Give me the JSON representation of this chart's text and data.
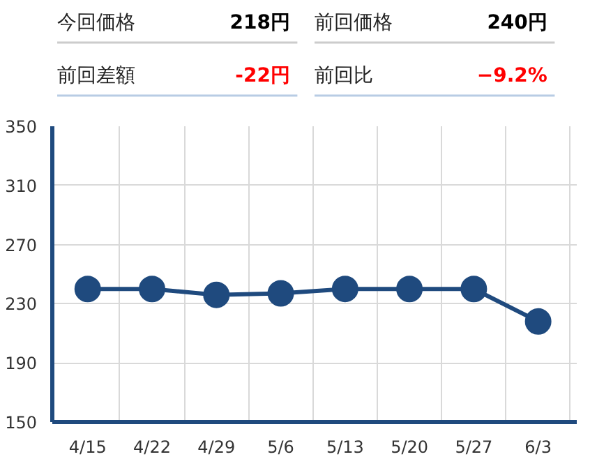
{
  "chart_data": [
    {
      "type": "other",
      "annotations": [
        "今回価格",
        "218円",
        "前回価格",
        "240円",
        "前回差額",
        "-22円",
        "前回比",
        "−9.2%"
      ]
    },
    {
      "type": "line",
      "categories": [
        "4/15",
        "4/22",
        "4/29",
        "5/6",
        "5/13",
        "5/20",
        "5/27",
        "6/3"
      ],
      "series": [
        {
          "color": "#1f4a7e",
          "values": [
            240,
            240,
            236,
            237,
            240,
            240,
            240,
            218
          ]
        }
      ],
      "ylim": [
        150,
        350
      ],
      "yticks": [
        150,
        190,
        230,
        270,
        310,
        350
      ],
      "grid": true,
      "marker": "circle",
      "line_style": "solid"
    }
  ]
}
